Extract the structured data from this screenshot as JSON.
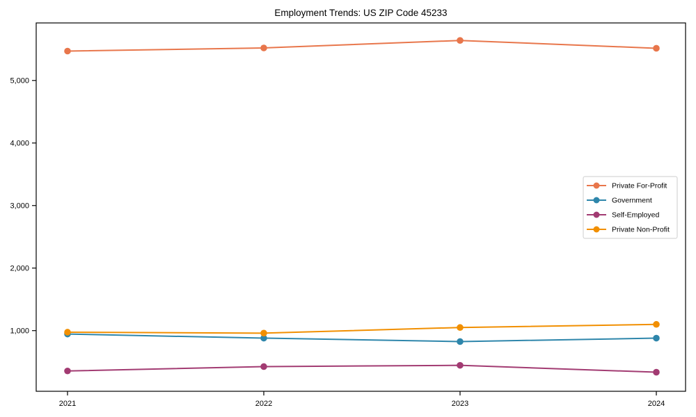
{
  "chart_data": {
    "type": "line",
    "title": "Employment Trends: US ZIP Code 45233",
    "xlabel": "",
    "ylabel": "",
    "categories": [
      "2021",
      "2022",
      "2023",
      "2024"
    ],
    "series": [
      {
        "name": "Private For-Profit",
        "color": "#E8764B",
        "values": [
          5470,
          5520,
          5640,
          5515
        ]
      },
      {
        "name": "Government",
        "color": "#2E86AB",
        "values": [
          945,
          880,
          825,
          880
        ]
      },
      {
        "name": "Self-Employed",
        "color": "#A23B72",
        "values": [
          355,
          425,
          445,
          335
        ]
      },
      {
        "name": "Private Non-Profit",
        "color": "#F18F01",
        "values": [
          975,
          960,
          1050,
          1100
        ]
      }
    ],
    "ylim": [
      30,
      5920
    ],
    "yticks": [
      1000,
      2000,
      3000,
      4000,
      5000
    ],
    "ytick_labels": [
      "1,000",
      "2,000",
      "3,000",
      "4,000",
      "5,000"
    ],
    "grid": false,
    "legend_position": "center right",
    "frame_color": "#000000",
    "legend_border_color": "#cccccc",
    "marker": "circle"
  }
}
